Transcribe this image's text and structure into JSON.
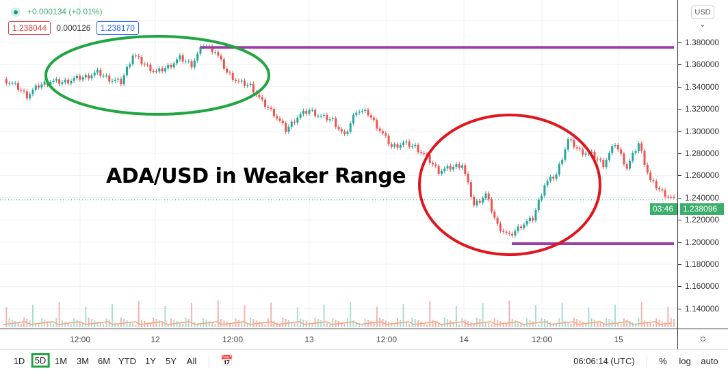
{
  "header": {
    "change": "+0.000134 (+0.01%)",
    "bid": "1.238044",
    "spread": "0.000126",
    "ask": "1.238170"
  },
  "annotation_title": "ADA/USD in Weaker Range",
  "price_axis": {
    "currency": "USD ⌄",
    "labels": [
      "1.380000",
      "1.360000",
      "1.340000",
      "1.320000",
      "1.300000",
      "1.280000",
      "1.260000",
      "1.240000",
      "1.220000",
      "1.200000",
      "1.180000",
      "1.160000",
      "1.140000"
    ],
    "last_price": "1.238096",
    "countdown": "03:46"
  },
  "time_axis": {
    "labels": [
      "12:00",
      "12",
      "12:00",
      "13",
      "12:00",
      "14",
      "12:00",
      "15"
    ]
  },
  "toolbar": {
    "timeframes": [
      "1D",
      "5D",
      "1M",
      "3M",
      "6M",
      "YTD",
      "1Y",
      "5Y",
      "All"
    ],
    "active": "5D",
    "clock": "06:06:14 (UTC)",
    "percent": "%",
    "log": "log",
    "auto": "auto"
  },
  "colors": {
    "up": "#26a69a",
    "down": "#ef5350",
    "green_ellipse": "#1fa640",
    "red_ellipse": "#e0161e",
    "level_line": "#9c3ea6",
    "last_price": "#3aaf6c"
  },
  "chart_data": {
    "type": "candlestick",
    "title": "",
    "ylim": [
      1.125,
      1.405
    ],
    "levels": [
      1.3755,
      1.1985
    ],
    "closes_approx": [
      1.347,
      1.341,
      1.332,
      1.341,
      1.345,
      1.344,
      1.347,
      1.349,
      1.353,
      1.347,
      1.344,
      1.369,
      1.36,
      1.353,
      1.358,
      1.366,
      1.36,
      1.378,
      1.372,
      1.353,
      1.344,
      1.341,
      1.326,
      1.316,
      1.301,
      1.313,
      1.319,
      1.313,
      1.31,
      1.295,
      1.319,
      1.316,
      1.301,
      1.286,
      1.289,
      1.286,
      1.276,
      1.264,
      1.267,
      1.27,
      1.233,
      1.243,
      1.215,
      1.205,
      1.215,
      1.221,
      1.252,
      1.261,
      1.292,
      1.282,
      1.279,
      1.27,
      1.289,
      1.267,
      1.289,
      1.255,
      1.245,
      1.238
    ]
  }
}
